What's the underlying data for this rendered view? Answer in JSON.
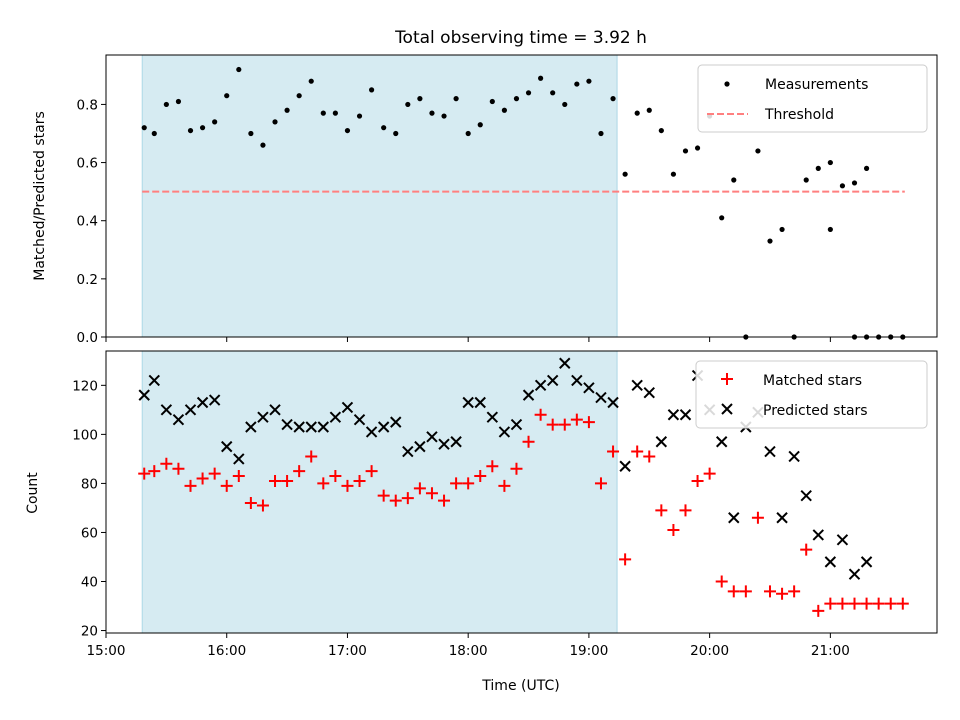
{
  "chart_data": [
    {
      "type": "scatter",
      "title": "Total observing time = 3.92 h",
      "xlabel": "",
      "ylabel": "Matched/Predicted stars",
      "ylim": [
        0,
        0.97
      ],
      "yticks": [
        "0.0",
        "0.2",
        "0.4",
        "0.6",
        "0.8"
      ],
      "xlim": [
        "15:00",
        "21:53"
      ],
      "shaded_interval": {
        "start": "15:18",
        "end": "19:14",
        "color": "#add8e6"
      },
      "legend": {
        "position": "top-right",
        "entries": [
          "Measurements",
          "Threshold"
        ]
      },
      "threshold": {
        "name": "Threshold",
        "value": 0.5,
        "x_start": "15:18",
        "x_end": "21:37",
        "color": "#ff7f7f",
        "style": "dashed"
      },
      "series": [
        {
          "name": "Measurements",
          "color": "#000000",
          "marker": "dot",
          "x": [
            "15:19",
            "15:24",
            "15:30",
            "15:36",
            "15:42",
            "15:48",
            "15:54",
            "16:00",
            "16:06",
            "16:12",
            "16:18",
            "16:24",
            "16:30",
            "16:36",
            "16:42",
            "16:48",
            "16:54",
            "17:00",
            "17:06",
            "17:12",
            "17:18",
            "17:24",
            "17:30",
            "17:36",
            "17:42",
            "17:48",
            "17:54",
            "18:00",
            "18:06",
            "18:12",
            "18:18",
            "18:24",
            "18:30",
            "18:36",
            "18:42",
            "18:48",
            "18:54",
            "19:00",
            "19:06",
            "19:12",
            "19:18",
            "19:24",
            "19:30",
            "19:36",
            "19:42",
            "19:48",
            "19:54",
            "20:00",
            "20:06",
            "20:12",
            "20:18",
            "20:24",
            "20:30",
            "20:36",
            "20:42",
            "20:48",
            "20:54",
            "21:00",
            "21:06",
            "21:12",
            "21:18",
            "21:24",
            "21:30",
            "21:36",
            "21:00",
            "21:12",
            "21:18"
          ],
          "y": [
            0.72,
            0.7,
            0.8,
            0.81,
            0.71,
            0.72,
            0.74,
            0.83,
            0.92,
            0.7,
            0.66,
            0.74,
            0.78,
            0.83,
            0.88,
            0.77,
            0.77,
            0.71,
            0.76,
            0.85,
            0.72,
            0.7,
            0.8,
            0.82,
            0.77,
            0.76,
            0.82,
            0.7,
            0.73,
            0.81,
            0.78,
            0.82,
            0.84,
            0.89,
            0.84,
            0.8,
            0.87,
            0.88,
            0.7,
            0.82,
            0.56,
            0.77,
            0.78,
            0.71,
            0.56,
            0.64,
            0.65,
            0.76,
            0.41,
            0.54,
            0.0,
            0.64,
            0.33,
            0.37,
            0.0,
            0.54,
            0.58,
            0.37,
            0.52,
            0.0,
            0.0,
            0.0,
            0.0,
            0.0,
            0.6,
            0.53,
            0.58
          ]
        }
      ]
    },
    {
      "type": "scatter",
      "title": "",
      "xlabel": "Time (UTC)",
      "ylabel": "Count",
      "ylim": [
        19,
        134
      ],
      "yticks": [
        "20",
        "40",
        "60",
        "80",
        "100",
        "120"
      ],
      "xticks": [
        "15:00",
        "16:00",
        "17:00",
        "18:00",
        "19:00",
        "20:00",
        "21:00"
      ],
      "xlim": [
        "15:00",
        "21:53"
      ],
      "shaded_interval": {
        "start": "15:18",
        "end": "19:14",
        "color": "#add8e6"
      },
      "legend": {
        "position": "top-right",
        "entries": [
          "Matched stars",
          "Predicted stars"
        ]
      },
      "series": [
        {
          "name": "Matched stars",
          "color": "#ff0000",
          "marker": "plus",
          "x": [
            "15:19",
            "15:24",
            "15:30",
            "15:36",
            "15:42",
            "15:48",
            "15:54",
            "16:00",
            "16:06",
            "16:12",
            "16:18",
            "16:24",
            "16:30",
            "16:36",
            "16:42",
            "16:48",
            "16:54",
            "17:00",
            "17:06",
            "17:12",
            "17:18",
            "17:24",
            "17:30",
            "17:36",
            "17:42",
            "17:48",
            "17:54",
            "18:00",
            "18:06",
            "18:12",
            "18:18",
            "18:24",
            "18:30",
            "18:36",
            "18:42",
            "18:48",
            "18:54",
            "19:00",
            "19:06",
            "19:12",
            "19:18",
            "19:24",
            "19:30",
            "19:36",
            "19:42",
            "19:48",
            "19:54",
            "20:00",
            "20:06",
            "20:12",
            "20:18",
            "20:24",
            "20:30",
            "20:36",
            "20:42",
            "20:48",
            "20:54",
            "21:00",
            "21:06",
            "21:12",
            "21:18",
            "21:24",
            "21:30",
            "21:36"
          ],
          "y": [
            84,
            85,
            88,
            86,
            79,
            82,
            84,
            79,
            83,
            72,
            71,
            81,
            81,
            85,
            91,
            80,
            83,
            79,
            81,
            85,
            75,
            73,
            74,
            78,
            76,
            73,
            80,
            80,
            83,
            87,
            79,
            86,
            97,
            108,
            104,
            104,
            106,
            105,
            80,
            93,
            49,
            93,
            91,
            69,
            61,
            69,
            81,
            84,
            40,
            36,
            36,
            66,
            36,
            35,
            36,
            53,
            28,
            31,
            31,
            31,
            31,
            31,
            31,
            31
          ]
        },
        {
          "name": "Predicted stars",
          "color": "#000000",
          "marker": "x",
          "x": [
            "15:19",
            "15:24",
            "15:30",
            "15:36",
            "15:42",
            "15:48",
            "15:54",
            "16:00",
            "16:06",
            "16:12",
            "16:18",
            "16:24",
            "16:30",
            "16:36",
            "16:42",
            "16:48",
            "16:54",
            "17:00",
            "17:06",
            "17:12",
            "17:18",
            "17:24",
            "17:30",
            "17:36",
            "17:42",
            "17:48",
            "17:54",
            "18:00",
            "18:06",
            "18:12",
            "18:18",
            "18:24",
            "18:30",
            "18:36",
            "18:42",
            "18:48",
            "18:54",
            "19:00",
            "19:06",
            "19:12",
            "19:18",
            "19:24",
            "19:30",
            "19:36",
            "19:42",
            "19:48",
            "19:54",
            "20:00",
            "20:06",
            "20:12",
            "20:18",
            "20:24",
            "20:30",
            "20:36",
            "20:42",
            "20:48",
            "20:54",
            "21:00",
            "21:06",
            "21:12",
            "21:18"
          ],
          "y": [
            116,
            122,
            110,
            106,
            110,
            113,
            114,
            95,
            90,
            103,
            107,
            110,
            104,
            103,
            103,
            103,
            107,
            111,
            106,
            101,
            103,
            105,
            93,
            95,
            99,
            96,
            97,
            113,
            113,
            107,
            101,
            104,
            116,
            120,
            122,
            129,
            122,
            119,
            115,
            113,
            87,
            120,
            117,
            97,
            108,
            108,
            124,
            110,
            97,
            66,
            103,
            109,
            93,
            66,
            91,
            75,
            59,
            48,
            57,
            43,
            48
          ]
        }
      ]
    }
  ]
}
